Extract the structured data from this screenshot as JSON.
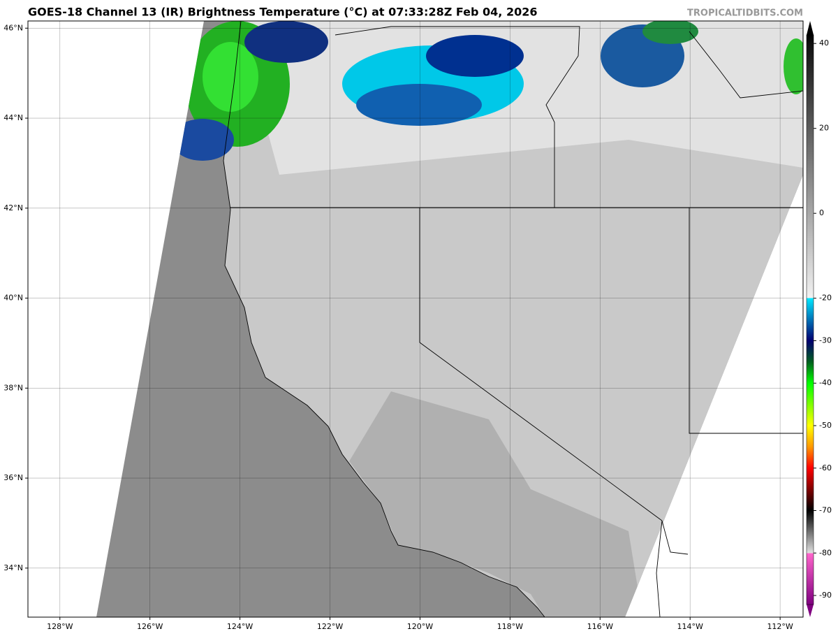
{
  "title": "GOES-18 Channel 13 (IR) Brightness Temperature (°C) at 07:33:28Z Feb 04, 2026",
  "watermark": "TROPICALTIDBITS.COM",
  "map": {
    "xlim": [
      -128.71,
      -111.49
    ],
    "ylim": [
      32.91,
      46.16
    ],
    "xticks": [
      {
        "value": -128,
        "label": "128°W"
      },
      {
        "value": -126,
        "label": "126°W"
      },
      {
        "value": -124,
        "label": "124°W"
      },
      {
        "value": -122,
        "label": "122°W"
      },
      {
        "value": -120,
        "label": "120°W"
      },
      {
        "value": -118,
        "label": "118°W"
      },
      {
        "value": -116,
        "label": "116°W"
      },
      {
        "value": -114,
        "label": "114°W"
      },
      {
        "value": -112,
        "label": "112°W"
      }
    ],
    "yticks": [
      {
        "value": 34,
        "label": "34°N"
      },
      {
        "value": 36,
        "label": "36°N"
      },
      {
        "value": 38,
        "label": "38°N"
      },
      {
        "value": 40,
        "label": "40°N"
      },
      {
        "value": 42,
        "label": "42°N"
      },
      {
        "value": 44,
        "label": "44°N"
      },
      {
        "value": 46,
        "label": "46°N"
      }
    ],
    "grid": true
  },
  "colorbar": {
    "lim": [
      -95.1,
      45.3
    ],
    "ticks": [
      40,
      20,
      0,
      -20,
      -30,
      -40,
      -50,
      -60,
      -70,
      -80,
      -90
    ],
    "stops": [
      [
        45.3,
        "#000000"
      ],
      [
        40,
        "#111111"
      ],
      [
        -20,
        "#f2f2f2"
      ],
      [
        -20,
        "#00e8ff"
      ],
      [
        -30,
        "#000070"
      ],
      [
        -35,
        "#006020"
      ],
      [
        -40,
        "#00ff00"
      ],
      [
        -50,
        "#ffff00"
      ],
      [
        -55,
        "#ff9900"
      ],
      [
        -60,
        "#ff0000"
      ],
      [
        -65,
        "#800000"
      ],
      [
        -70,
        "#000000"
      ],
      [
        -80,
        "#e0e0e0"
      ],
      [
        -80,
        "#ff66cc"
      ],
      [
        -95.1,
        "#800080"
      ]
    ]
  }
}
